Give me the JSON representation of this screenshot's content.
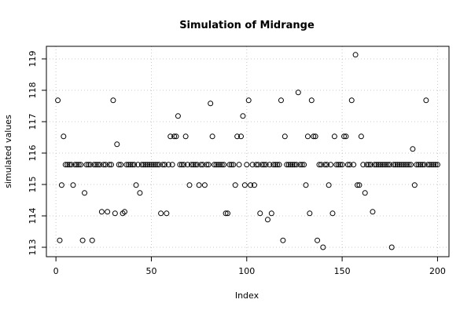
{
  "chart_data": {
    "type": "scatter",
    "title": "Simulation of Midrange",
    "xlabel": "Index",
    "ylabel": "simulated values",
    "xlim": [
      -5,
      206
    ],
    "ylim": [
      112.7,
      119.4
    ],
    "xticks": [
      0,
      50,
      100,
      150,
      200
    ],
    "yticks": [
      113,
      114,
      115,
      116,
      117,
      118,
      119
    ],
    "grid": true,
    "x": [
      1,
      2,
      3,
      4,
      5,
      6,
      7,
      8,
      9,
      10,
      11,
      12,
      13,
      14,
      15,
      16,
      17,
      18,
      19,
      20,
      21,
      22,
      23,
      24,
      25,
      26,
      27,
      28,
      29,
      30,
      31,
      32,
      33,
      34,
      35,
      36,
      37,
      38,
      39,
      40,
      41,
      42,
      43,
      44,
      45,
      46,
      47,
      48,
      49,
      50,
      51,
      52,
      53,
      54,
      55,
      56,
      57,
      58,
      59,
      60,
      61,
      62,
      63,
      64,
      65,
      66,
      67,
      68,
      69,
      70,
      71,
      72,
      73,
      74,
      75,
      76,
      77,
      78,
      79,
      80,
      81,
      82,
      83,
      84,
      85,
      86,
      87,
      88,
      89,
      90,
      91,
      92,
      93,
      94,
      95,
      96,
      97,
      98,
      99,
      100,
      101,
      102,
      103,
      104,
      105,
      106,
      107,
      108,
      109,
      110,
      111,
      112,
      113,
      114,
      115,
      116,
      117,
      118,
      119,
      120,
      121,
      122,
      123,
      124,
      125,
      126,
      127,
      128,
      129,
      130,
      131,
      132,
      133,
      134,
      135,
      136,
      137,
      138,
      139,
      140,
      141,
      142,
      143,
      144,
      145,
      146,
      147,
      148,
      149,
      150,
      151,
      152,
      153,
      154,
      155,
      156,
      157,
      158,
      159,
      160,
      161,
      162,
      163,
      164,
      165,
      166,
      167,
      168,
      169,
      170,
      171,
      172,
      173,
      174,
      175,
      176,
      177,
      178,
      179,
      180,
      181,
      182,
      183,
      184,
      185,
      186,
      187,
      188,
      189,
      190,
      191,
      192,
      193,
      194,
      195,
      196,
      197,
      198,
      199,
      200
    ],
    "values": [
      117.68,
      113.22,
      114.98,
      116.53,
      115.63,
      115.63,
      115.63,
      115.63,
      114.98,
      115.63,
      115.63,
      115.63,
      115.63,
      113.22,
      114.73,
      115.63,
      115.63,
      115.63,
      113.22,
      115.63,
      115.63,
      115.63,
      115.63,
      114.13,
      115.63,
      115.63,
      114.13,
      115.63,
      115.63,
      117.68,
      114.08,
      116.28,
      115.63,
      115.63,
      114.08,
      114.13,
      115.63,
      115.63,
      115.63,
      115.63,
      115.63,
      114.98,
      115.63,
      114.73,
      115.63,
      115.63,
      115.63,
      115.63,
      115.63,
      115.63,
      115.63,
      115.63,
      115.63,
      115.63,
      114.08,
      115.63,
      115.63,
      114.08,
      115.63,
      116.53,
      115.63,
      116.53,
      116.53,
      117.18,
      115.63,
      115.63,
      115.63,
      116.53,
      115.63,
      114.98,
      115.63,
      115.63,
      115.63,
      115.63,
      114.98,
      115.63,
      115.63,
      114.98,
      115.63,
      115.63,
      117.58,
      116.53,
      115.63,
      115.63,
      115.63,
      115.63,
      115.63,
      115.63,
      114.08,
      114.08,
      115.63,
      115.63,
      115.63,
      114.98,
      116.53,
      115.63,
      116.53,
      117.18,
      114.98,
      115.63,
      117.68,
      114.98,
      115.63,
      114.98,
      115.63,
      115.63,
      114.08,
      115.63,
      115.63,
      115.63,
      113.88,
      115.63,
      114.08,
      115.63,
      115.63,
      115.63,
      115.63,
      117.68,
      113.22,
      116.53,
      115.63,
      115.63,
      115.63,
      115.63,
      115.63,
      115.63,
      117.93,
      115.63,
      115.63,
      115.63,
      114.98,
      116.53,
      114.08,
      117.68,
      116.53,
      116.53,
      113.22,
      115.63,
      115.63,
      113.0,
      115.63,
      115.63,
      114.98,
      115.63,
      114.08,
      116.53,
      115.63,
      115.63,
      115.63,
      115.63,
      116.53,
      116.53,
      115.63,
      115.63,
      117.68,
      115.63,
      119.13,
      114.98,
      114.98,
      116.53,
      115.63,
      114.73,
      115.63,
      115.63,
      115.63,
      114.13,
      115.63,
      115.63,
      115.63,
      115.63,
      115.63,
      115.63,
      115.63,
      115.63,
      115.63,
      113.0,
      115.63,
      115.63,
      115.63,
      115.63,
      115.63,
      115.63,
      115.63,
      115.63,
      115.63,
      115.63,
      116.13,
      114.98,
      115.63,
      115.63,
      115.63,
      115.63,
      115.63,
      117.68,
      115.63,
      115.63,
      115.63,
      115.63,
      115.63,
      115.63
    ]
  }
}
